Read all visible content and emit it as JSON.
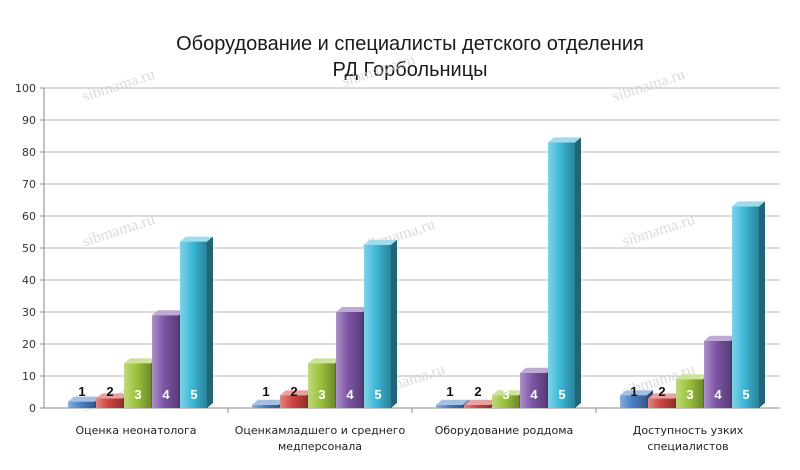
{
  "chart_data": {
    "type": "bar",
    "title": [
      "Оборудование и специалисты детского отделения",
      "РД Горбольницы"
    ],
    "xlabel": "",
    "ylabel": "",
    "ylim": [
      0,
      100
    ],
    "yticks": [
      0,
      10,
      20,
      30,
      40,
      50,
      60,
      70,
      80,
      90,
      100
    ],
    "grid": true,
    "categories": [
      [
        "Оценка неонатолога"
      ],
      [
        "Оценкамладшего и среднего",
        "медперсонала"
      ],
      [
        "Оборудование роддома"
      ],
      [
        "Доступность узких",
        "специалистов"
      ]
    ],
    "series": [
      {
        "name": "1",
        "color": "#4a7fc6",
        "values": [
          2,
          1,
          1,
          4
        ]
      },
      {
        "name": "2",
        "color": "#d04540",
        "values": [
          3,
          4,
          1,
          3
        ]
      },
      {
        "name": "3",
        "color": "#9cc33b",
        "values": [
          14,
          14,
          4,
          9
        ]
      },
      {
        "name": "4",
        "color": "#7c55a6",
        "values": [
          29,
          30,
          11,
          21
        ]
      },
      {
        "name": "5",
        "color": "#3cb8d9",
        "values": [
          52,
          51,
          83,
          63
        ]
      }
    ],
    "label_colors": [
      "#111111",
      "#111111",
      "#ffffff",
      "#ffffff",
      "#ffffff"
    ]
  },
  "watermark": "sibmama.ru"
}
